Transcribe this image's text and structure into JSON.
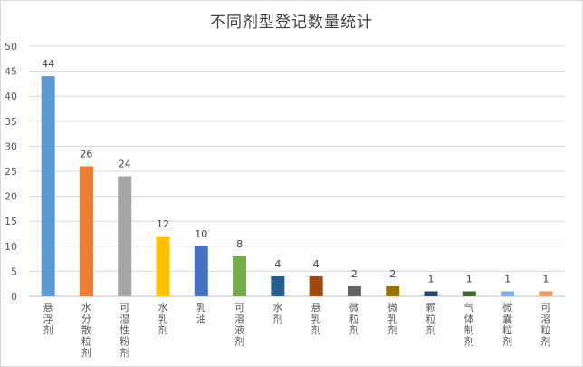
{
  "chart_data": {
    "type": "bar",
    "title": "不同剂型登记数量统计",
    "xlabel": "",
    "ylabel": "",
    "ylim": [
      0,
      50
    ],
    "yticks": [
      0,
      5,
      10,
      15,
      20,
      25,
      30,
      35,
      40,
      45,
      50
    ],
    "grid": true,
    "legend": "none",
    "categories": [
      "悬浮剂",
      "水分散粒剂",
      "可湿性粉剂",
      "水乳剂",
      "乳油",
      "可溶液剂",
      "水剂",
      "悬乳剂",
      "微粒剂",
      "微乳剂",
      "颗粒剂",
      "气体制剂",
      "微囊粒剂",
      "可溶粒剂"
    ],
    "values": [
      44,
      26,
      24,
      12,
      10,
      8,
      4,
      4,
      2,
      2,
      1,
      1,
      1,
      1
    ],
    "colors": [
      "#5b9bd5",
      "#ed7d31",
      "#a5a5a5",
      "#ffc000",
      "#4472c4",
      "#70ad47",
      "#255e91",
      "#9e480e",
      "#636363",
      "#997300",
      "#264478",
      "#43682b",
      "#7cafdd",
      "#f1975a"
    ]
  }
}
